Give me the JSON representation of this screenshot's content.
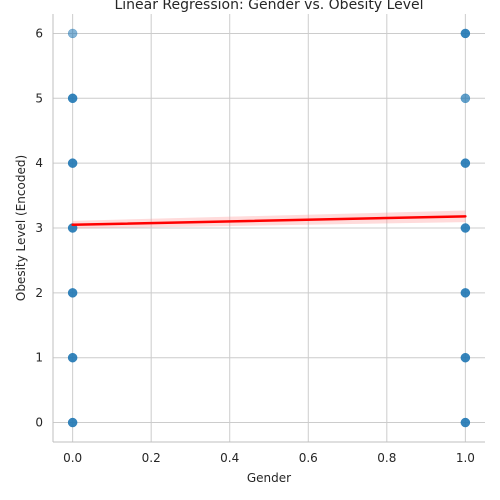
{
  "chart_data": {
    "type": "scatter",
    "title": "Linear Regression: Gender vs. Obesity Level",
    "xlabel": "Gender",
    "ylabel": "Obesity Level (Encoded)",
    "xlim": [
      -0.05,
      1.05
    ],
    "ylim": [
      -0.3,
      6.3
    ],
    "xticks": [
      0.0,
      0.2,
      0.4,
      0.6,
      0.8,
      1.0
    ],
    "xtick_labels": [
      "0.0",
      "0.2",
      "0.4",
      "0.6",
      "0.8",
      "1.0"
    ],
    "yticks": [
      0,
      1,
      2,
      3,
      4,
      5,
      6
    ],
    "ytick_labels": [
      "0",
      "1",
      "2",
      "3",
      "4",
      "5",
      "6"
    ],
    "grid": true,
    "legend": "none",
    "point_color": "#1f77b4",
    "line_color": "#ff0000",
    "band_color": "#ff9999",
    "points": [
      {
        "x": 0,
        "y": 0,
        "alpha": 0.9
      },
      {
        "x": 0,
        "y": 1,
        "alpha": 0.9
      },
      {
        "x": 0,
        "y": 2,
        "alpha": 0.9
      },
      {
        "x": 0,
        "y": 3,
        "alpha": 0.9
      },
      {
        "x": 0,
        "y": 4,
        "alpha": 0.9
      },
      {
        "x": 0,
        "y": 5,
        "alpha": 0.9
      },
      {
        "x": 0,
        "y": 6,
        "alpha": 0.55
      },
      {
        "x": 1,
        "y": 0,
        "alpha": 0.9
      },
      {
        "x": 1,
        "y": 1,
        "alpha": 0.9
      },
      {
        "x": 1,
        "y": 2,
        "alpha": 0.9
      },
      {
        "x": 1,
        "y": 3,
        "alpha": 0.9
      },
      {
        "x": 1,
        "y": 4,
        "alpha": 0.9
      },
      {
        "x": 1,
        "y": 5,
        "alpha": 0.7
      },
      {
        "x": 1,
        "y": 6,
        "alpha": 0.9
      }
    ],
    "regression": {
      "x": [
        0,
        1
      ],
      "y": [
        3.05,
        3.18
      ],
      "ci_low": [
        2.99,
        3.09
      ],
      "ci_high": [
        3.11,
        3.27
      ]
    }
  }
}
